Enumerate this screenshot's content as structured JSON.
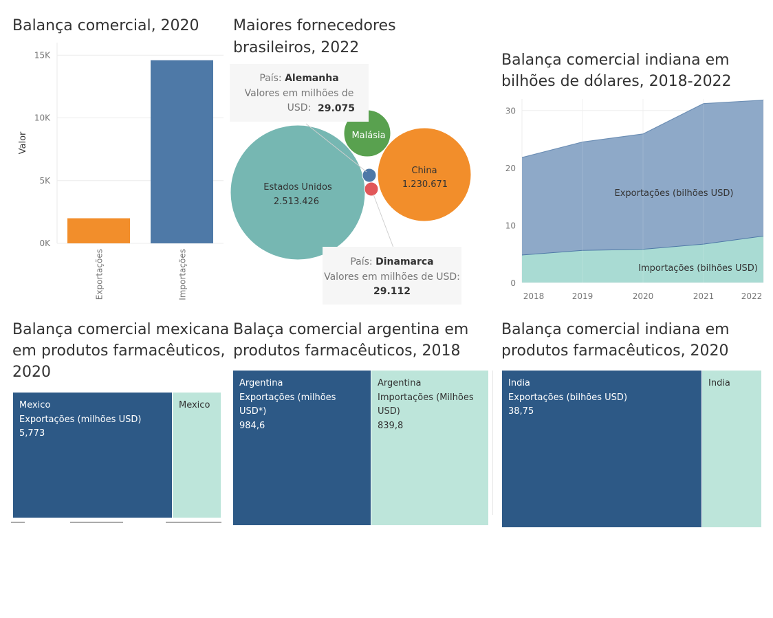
{
  "charts": {
    "trade2020": {
      "title": "Balança comercial, 2020",
      "chart_data": {
        "type": "bar",
        "title": "Balança comercial, 2020",
        "categories": [
          "Exportações",
          "Importações"
        ],
        "values": [
          2000,
          14600
        ],
        "colors": [
          "#f28e2b",
          "#4e79a7"
        ],
        "ylabel": "Valor",
        "ylim": [
          0,
          16000
        ],
        "yticks": [
          0,
          5000,
          10000,
          15000
        ],
        "ytick_labels": [
          "0K",
          "5K",
          "10K",
          "15K"
        ],
        "grid": true
      }
    },
    "suppliers": {
      "title_line1": "Maiores fornecedores",
      "title_line2": "brasileiros, 2022",
      "chart_data": {
        "type": "bubble",
        "title": "Maiores fornecedores brasileiros, 2022",
        "measure": "Valores em milhões de USD",
        "items": [
          {
            "name": "Estados Unidos",
            "value": 2513.426,
            "label": "2.513.426",
            "color": "#76b7b2"
          },
          {
            "name": "China",
            "value": 1230.671,
            "label": "1.230.671",
            "color": "#f28e2b"
          },
          {
            "name": "Malásia",
            "value": 580,
            "label": "",
            "color": "#59a14f"
          },
          {
            "name": "Alemanha",
            "value": 29.075,
            "label": "29.075",
            "color": "#4e79a7"
          },
          {
            "name": "Dinamarca",
            "value": 29.112,
            "label": "29.112",
            "color": "#e15759"
          }
        ]
      },
      "tooltip_germany": {
        "prefix": "País:",
        "country": "Alemanha",
        "measure": "Valores em milhões de USD:",
        "value": "29.075"
      },
      "tooltip_denmark": {
        "prefix": "País:",
        "country": "Dinamarca",
        "measure": "Valores em milhões de USD:",
        "value": "29.112"
      }
    },
    "india_trade": {
      "title_line1": "Balança comercial indiana em",
      "title_line2": "bilhões de dólares, 2018-2022",
      "chart_data": {
        "type": "area",
        "title": "Balança comercial indiana em bilhões de dólares, 2018-2022",
        "x": [
          2018,
          2019,
          2020,
          2021,
          2022
        ],
        "series": [
          {
            "name": "Exportações (bilhões USD)",
            "values": [
              21.8,
              24.5,
              25.9,
              31.2,
              31.8
            ],
            "color": "#8ea9c8"
          },
          {
            "name": "Importações (bilhões USD)",
            "values": [
              4.8,
              5.6,
              5.8,
              6.7,
              8.1
            ],
            "color": "#a9dbd3"
          }
        ],
        "ylim": [
          0,
          32
        ],
        "yticks": [
          0,
          10,
          20,
          30
        ]
      }
    },
    "mexico": {
      "title_line1": "Balança comercial mexicana",
      "title_line2": "em produtos farmacêuticos,",
      "title_line3": "2020",
      "chart_data": {
        "type": "treemap",
        "title": "Balança comercial mexicana em produtos farmacêuticos, 2020",
        "items": [
          {
            "country": "Mexico",
            "measure": "Exportações (milhões USD)",
            "value": "5,773"
          },
          {
            "country": "Mexico",
            "measure": "",
            "value": ""
          }
        ]
      }
    },
    "argentina": {
      "title_line1": "Balaça comercial argentina em",
      "title_line2": "produtos farmacêuticos, 2018",
      "chart_data": {
        "type": "treemap",
        "title": "Balaça comercial argentina em produtos farmacêuticos, 2018",
        "items": [
          {
            "country": "Argentina",
            "measure": "Exportações (milhões USD*)",
            "value": "984,6"
          },
          {
            "country": "Argentina",
            "measure_line1": "Importações (Milhões",
            "measure_line2": "USD)",
            "value": "839,8"
          }
        ]
      }
    },
    "india_pharma": {
      "title_line1": "Balança comercial indiana em",
      "title_line2": "produtos farmacêuticos, 2020",
      "chart_data": {
        "type": "treemap",
        "title": "Balança comercial indiana em produtos farmacêuticos, 2020",
        "items": [
          {
            "country": "India",
            "measure": "Exportações (bilhões USD)",
            "value": "38,75"
          },
          {
            "country": "India",
            "measure": "",
            "value": ""
          }
        ]
      }
    }
  }
}
